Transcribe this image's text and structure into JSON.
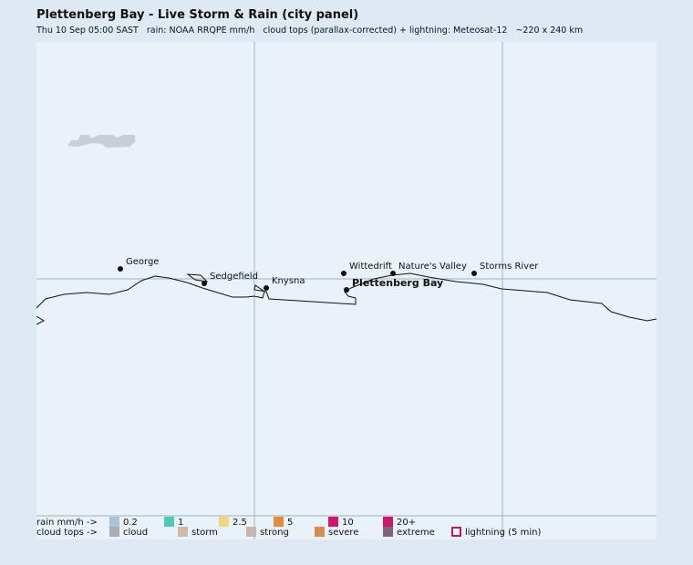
{
  "header": {
    "title": "Plettenberg Bay - Live Storm & Rain (city panel)",
    "subtitle": "Thu 10 Sep 05:00 SAST   rain: NOAA RRQPE mm/h   cloud tops (parallax-corrected) + lightning: Meteosat-12   ~220 x 240 km"
  },
  "places": [
    "George",
    "Sedgefield",
    "Knysna",
    "Wittedrift",
    "Nature's Valley",
    "Storms River",
    "Plettenberg Bay"
  ],
  "legend": {
    "rain": {
      "label": "rain mm/h ->",
      "items": [
        {
          "label": "0.2",
          "color": "#a9c4d6"
        },
        {
          "label": "1",
          "color": "#4ec9b8"
        },
        {
          "label": "2.5",
          "color": "#f0d77a"
        },
        {
          "label": "5",
          "color": "#e68a3c"
        },
        {
          "label": "10",
          "color": "#d0156f"
        },
        {
          "label": "20+",
          "color": "#d0156f"
        }
      ]
    },
    "cloud_tops": {
      "label": "cloud tops ->",
      "items": [
        {
          "label": "cloud",
          "color": "#a8adb3"
        },
        {
          "label": "storm",
          "color": "#cdbcaa"
        },
        {
          "label": "strong",
          "color": "#c9b8a8"
        },
        {
          "label": "severe",
          "color": "#d98a50"
        },
        {
          "label": "extreme",
          "color": "#7f6575"
        },
        {
          "label": "lightning (5 min)",
          "color": "#c0185c"
        }
      ]
    }
  }
}
